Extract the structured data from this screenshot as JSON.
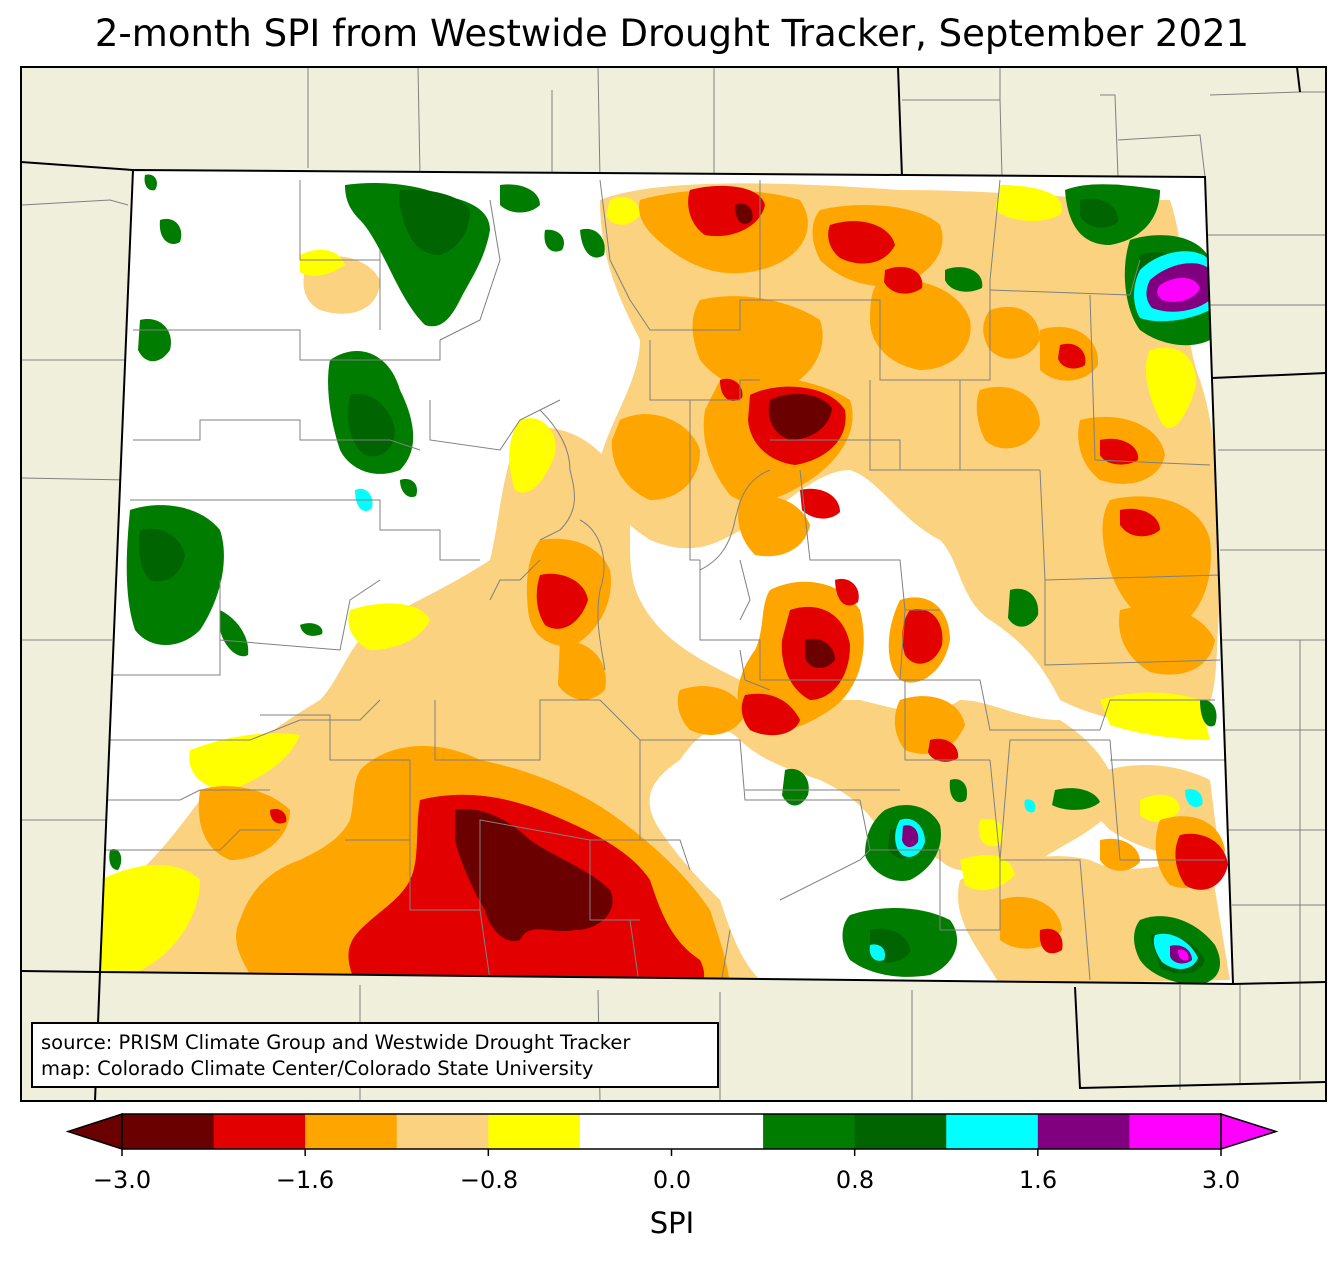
{
  "title": "2-month SPI from Westwide Drought Tracker, September 2021",
  "source_lines": [
    "source: PRISM Climate Group and Westwide Drought Tracker",
    "map: Colorado Climate Center/Colorado State University"
  ],
  "colorbar": {
    "label": "SPI",
    "colors": [
      "#6b0000",
      "#e30000",
      "#ffa500",
      "#fbd27f",
      "#ffff00",
      "#ffffff",
      "#ffffff",
      "#007d00",
      "#006400",
      "#00ffff",
      "#800080",
      "#ff00ff"
    ],
    "tick_labels": [
      "−3.0",
      "−1.6",
      "−0.8",
      "0.0",
      "0.8",
      "1.6",
      "3.0"
    ],
    "extend": "both"
  },
  "map": {
    "background_color": "#efefdc",
    "region": "Colorado"
  }
}
